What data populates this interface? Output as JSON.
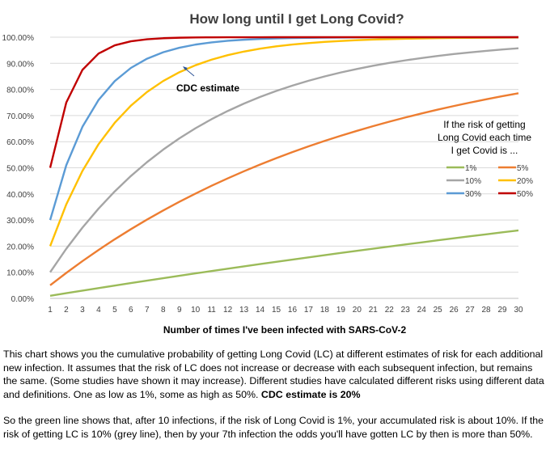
{
  "chart_data": {
    "type": "line",
    "title": "How long until I get Long Covid?",
    "xlabel": "Number of times I've been infected with SARS-CoV-2",
    "ylabel": "",
    "x": [
      1,
      2,
      3,
      4,
      5,
      6,
      7,
      8,
      9,
      10,
      11,
      12,
      13,
      14,
      15,
      16,
      17,
      18,
      19,
      20,
      21,
      22,
      23,
      24,
      25,
      26,
      27,
      28,
      29,
      30
    ],
    "ylim": [
      0,
      100
    ],
    "yticks": [
      "0.00%",
      "10.00%",
      "20.00%",
      "30.00%",
      "40.00%",
      "50.00%",
      "60.00%",
      "70.00%",
      "80.00%",
      "90.00%",
      "100.00%"
    ],
    "grid": true,
    "legend_title": "If the risk of getting Long Covid each time I get Covid is ...",
    "legend_title_lines": [
      "If the risk of getting",
      "Long Covid each time",
      "I get Covid is ..."
    ],
    "legend_position": "right",
    "annotation": "CDC estimate",
    "series": [
      {
        "name": "1%",
        "color": "#9BBB59",
        "p": 0.01
      },
      {
        "name": "5%",
        "color": "#ED7D31",
        "p": 0.05
      },
      {
        "name": "10%",
        "color": "#A5A5A5",
        "p": 0.1
      },
      {
        "name": "20%",
        "color": "#FFC000",
        "p": 0.2
      },
      {
        "name": "30%",
        "color": "#5B9BD5",
        "p": 0.3
      },
      {
        "name": "50%",
        "color": "#C00000",
        "p": 0.5
      }
    ]
  },
  "caption": {
    "paragraph1": "This chart shows you the cumulative probability of getting Long Covid (LC) at different estimates of risk for each additional new infection. It assumes that the risk of LC does not increase or decrease with each subsequent infection, but remains the same. (Some studies have shown it may increase). Different studies have calculated different risks using different data and definitions. One as low as 1%, some as high as 50%.",
    "paragraph1_bold": "CDC estimate is 20%",
    "paragraph2": "So the green line shows that, after 10 infections, if the risk of Long Covid is 1%, your accumulated risk is about 10%. If the risk of getting LC is 10% (grey line), then by your 7th infection the odds you'll have gotten LC by then is more than 50%."
  }
}
